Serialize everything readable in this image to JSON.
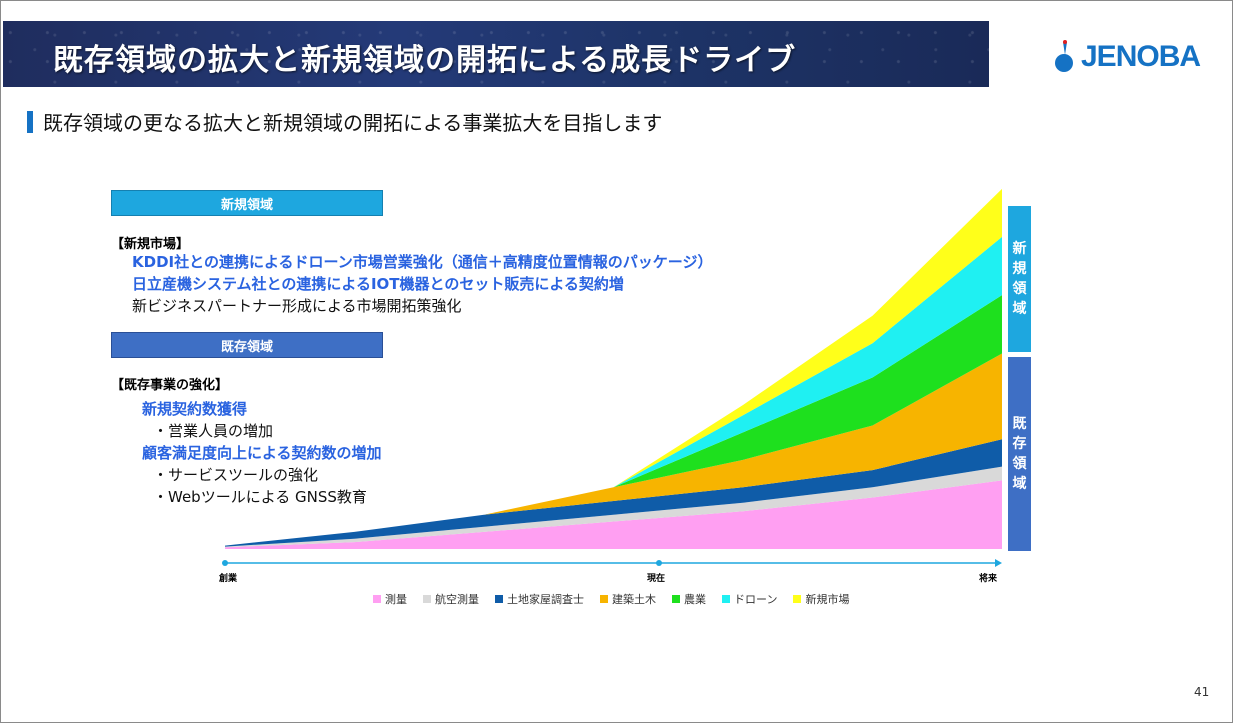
{
  "header": {
    "title": "既存領域の拡大と新規領域の開拓による成長ドライブ",
    "logo_text": "JENOBA"
  },
  "subtitle": "既存領域の更なる拡大と新規領域の開拓による事業拡大を目指します",
  "new_area": {
    "header": "新規領域",
    "bracket": "【新規市場】",
    "lines": [
      "KDDI社との連携によるドローン市場営業強化（通信＋高精度位置情報のパッケージ）",
      "日立産機システム社との連携によるIOT機器とのセット販売による契約増",
      "新ビジネスパートナー形成による市場開拓策強化"
    ]
  },
  "existing_area": {
    "header": "既存領域",
    "bracket": "【既存事業の強化】",
    "lines": [
      "新規契約数獲得",
      "・営業人員の増加",
      "顧客満足度向上による契約数の増加",
      "・サービスツールの強化",
      "・Webツールによる GNSS教育"
    ]
  },
  "side_labels": {
    "new": [
      "新",
      "規",
      "領",
      "域"
    ],
    "existing": [
      "既",
      "存",
      "領",
      "域"
    ]
  },
  "chart_data": {
    "type": "area",
    "stacked": true,
    "x": [
      "創業",
      "",
      "",
      "現在",
      "",
      "",
      "将来"
    ],
    "series": [
      {
        "name": "測量",
        "color": "#ff9ff2",
        "values": [
          0.5,
          2,
          5,
          8,
          11,
          15,
          20
        ]
      },
      {
        "name": "航空測量",
        "color": "#d9d9d9",
        "values": [
          0.2,
          1,
          1.5,
          2,
          2.5,
          3,
          4
        ]
      },
      {
        "name": "土地家屋調査士",
        "color": "#0f5ca8",
        "values": [
          0.3,
          2,
          3.5,
          4,
          4.5,
          5,
          8
        ]
      },
      {
        "name": "建築土木",
        "color": "#f7b400",
        "values": [
          0,
          0,
          0,
          4,
          8,
          13,
          25
        ]
      },
      {
        "name": "農業",
        "color": "#1ee01e",
        "values": [
          0,
          0,
          0,
          0,
          8,
          14,
          17
        ]
      },
      {
        "name": "ドローン",
        "color": "#1ff0f2",
        "values": [
          0,
          0,
          0,
          0,
          5,
          10,
          17
        ]
      },
      {
        "name": "新規市場",
        "color": "#ffff1a",
        "values": [
          0,
          0,
          0,
          0,
          3,
          8,
          14
        ]
      }
    ],
    "ylim": [
      0,
      100
    ],
    "axis_labels": [
      "創業",
      "現在",
      "将来"
    ],
    "legend": "bottom"
  },
  "page_number": "41"
}
